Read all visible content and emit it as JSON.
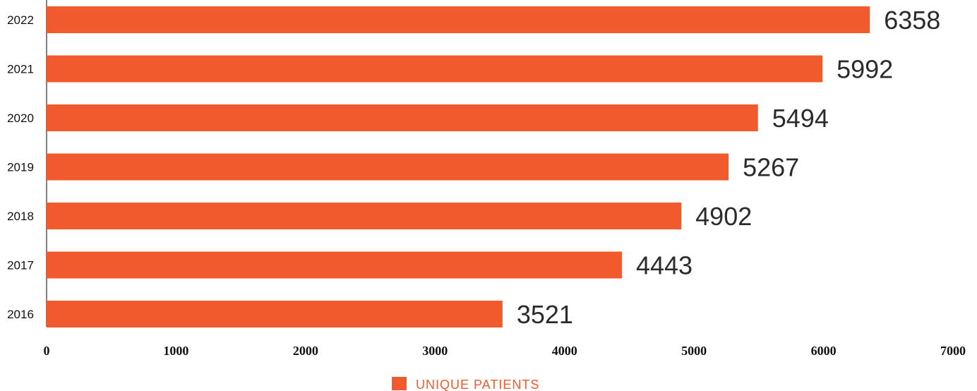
{
  "chart_data": {
    "type": "bar",
    "orientation": "horizontal",
    "categories": [
      "2022",
      "2021",
      "2020",
      "2019",
      "2018",
      "2017",
      "2016"
    ],
    "series": [
      {
        "name": "UNIQUE PATIENTS",
        "values": [
          6358,
          5992,
          5494,
          5267,
          4902,
          4443,
          3521
        ]
      }
    ],
    "xlim": [
      0,
      7000
    ],
    "xticks": [
      "0",
      "1000",
      "2000",
      "3000",
      "4000",
      "5000",
      "6000",
      "7000"
    ],
    "data_labels": [
      "6358",
      "5992",
      "5494",
      "5267",
      "4902",
      "4443",
      "3521"
    ],
    "grid": false,
    "legend_position": "bottom-center",
    "colors": {
      "bar": "#F05A2C",
      "legend_text": "#F05A2C",
      "axis": "#000000"
    }
  }
}
